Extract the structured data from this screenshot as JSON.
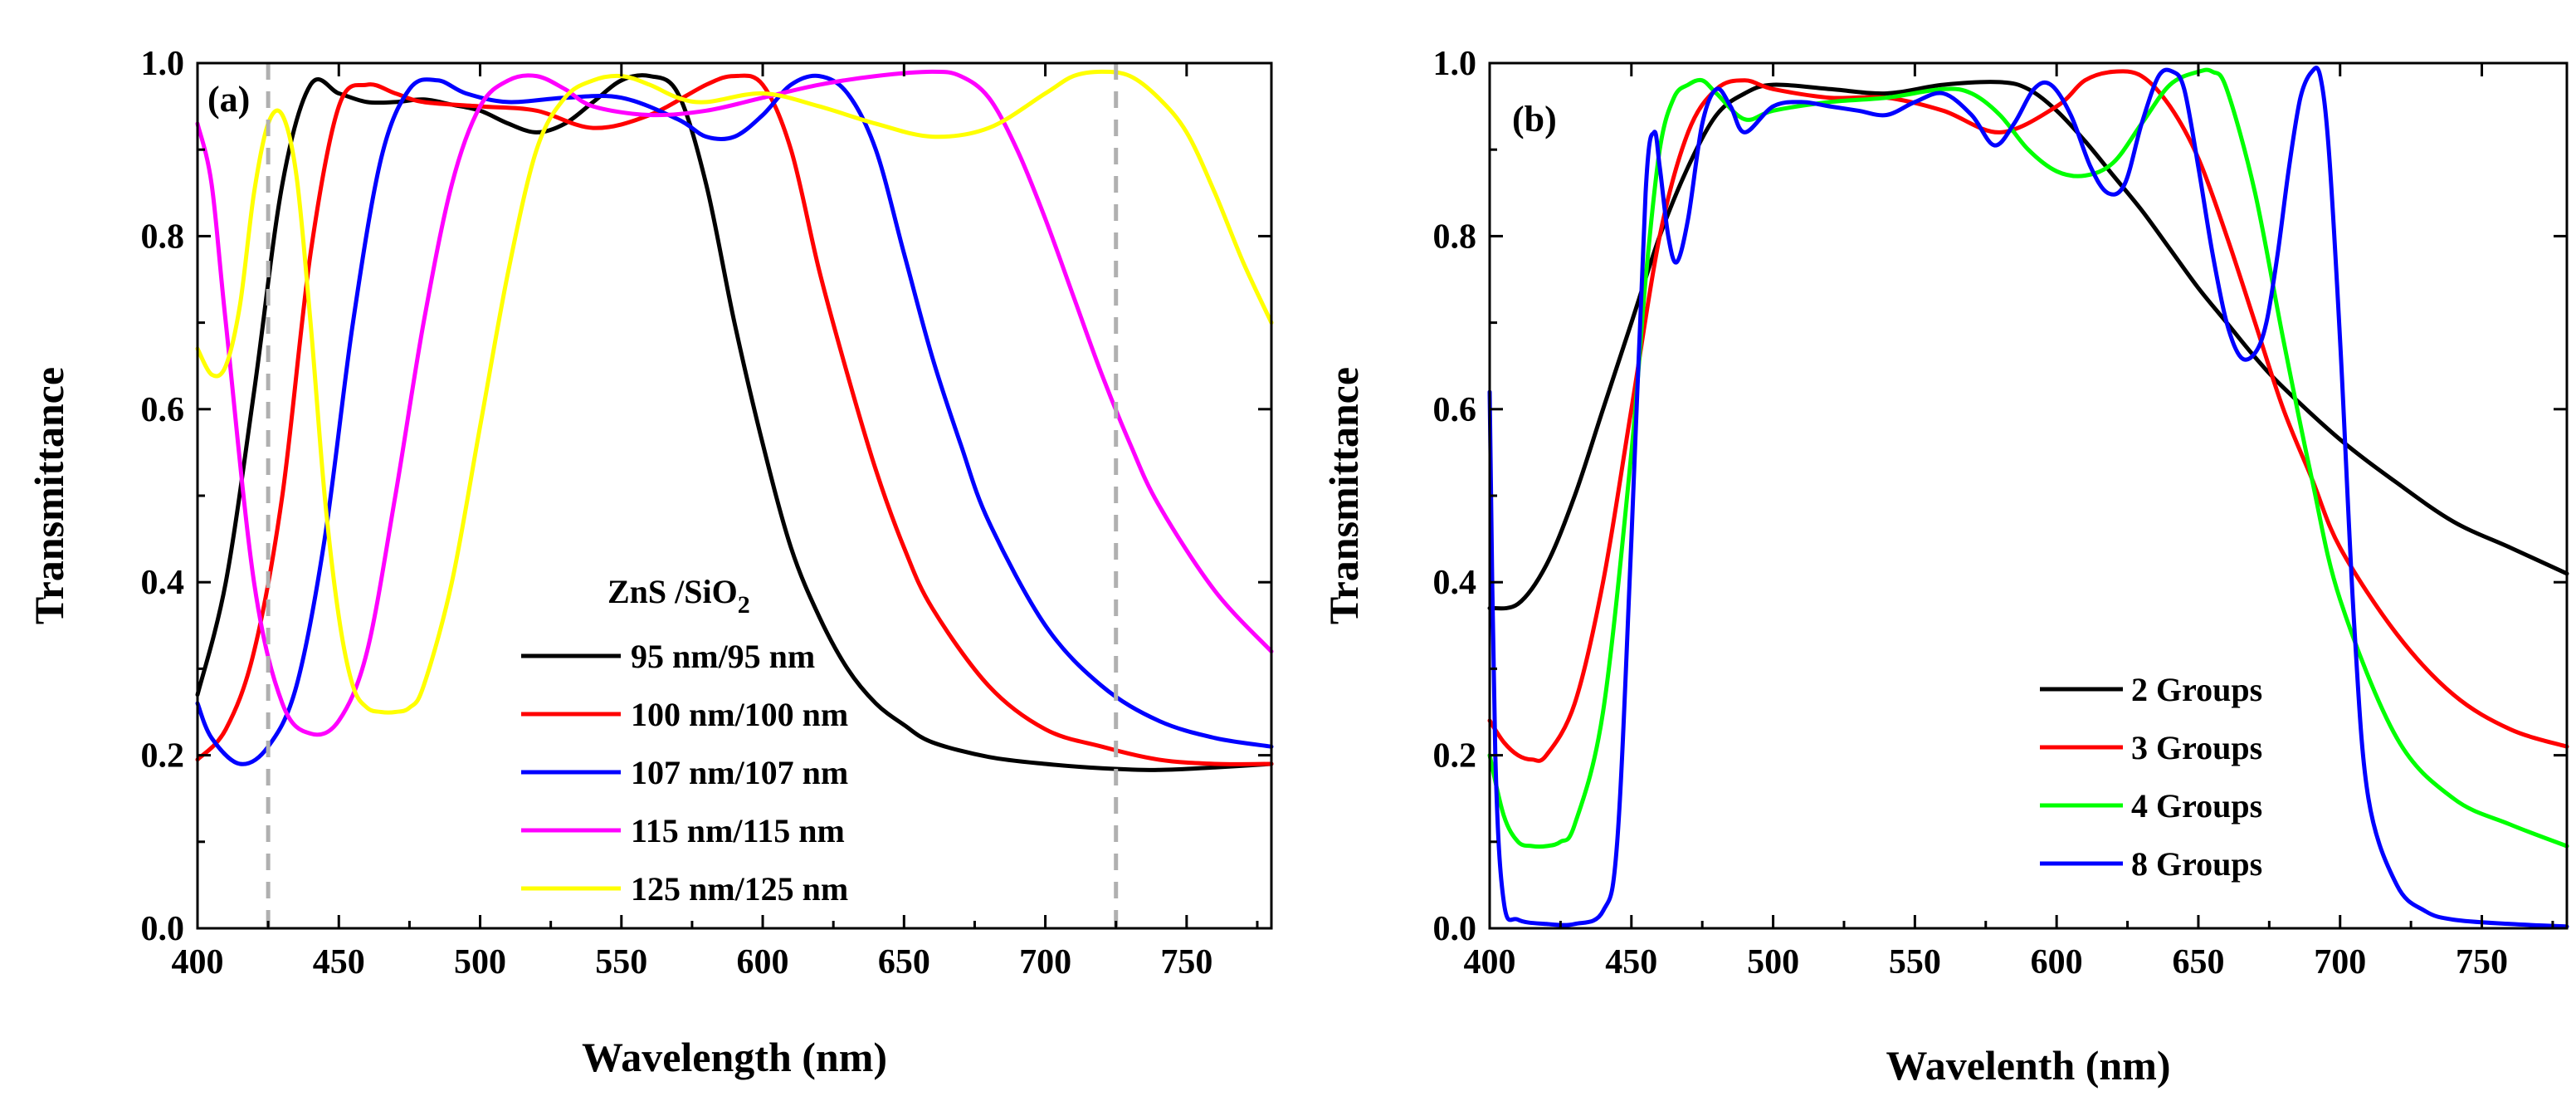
{
  "chart_data": [
    {
      "type": "line",
      "panel_label": "(a)",
      "xlabel": "Wavelength (nm)",
      "ylabel": "Transmittance",
      "xlim": [
        400,
        780
      ],
      "ylim": [
        0,
        1.0
      ],
      "x_ticks": [
        400,
        450,
        500,
        550,
        600,
        650,
        700,
        750
      ],
      "y_ticks": [
        0.0,
        0.2,
        0.4,
        0.6,
        0.8,
        1.0
      ],
      "y_tick_labels": [
        "0.0",
        "0.2",
        "0.4",
        "0.6",
        "0.8",
        "1.0"
      ],
      "reference_lines_x": [
        425,
        725
      ],
      "legend": {
        "title_main": "ZnS /SiO",
        "title_sub": "2",
        "placement": "center-bottom"
      },
      "series": [
        {
          "name": "95 nm/95 nm",
          "color": "#000000",
          "x": [
            400,
            410,
            420,
            430,
            440,
            450,
            460,
            470,
            480,
            490,
            500,
            510,
            520,
            530,
            540,
            550,
            560,
            570,
            580,
            590,
            600,
            610,
            620,
            630,
            640,
            650,
            660,
            680,
            700,
            720,
            740,
            760,
            780
          ],
          "y": [
            0.27,
            0.4,
            0.62,
            0.86,
            0.975,
            0.965,
            0.955,
            0.955,
            0.958,
            0.952,
            0.945,
            0.93,
            0.92,
            0.93,
            0.955,
            0.98,
            0.985,
            0.965,
            0.86,
            0.7,
            0.56,
            0.44,
            0.36,
            0.3,
            0.26,
            0.235,
            0.215,
            0.198,
            0.19,
            0.185,
            0.183,
            0.186,
            0.19
          ]
        },
        {
          "name": "100 nm/100 nm",
          "color": "#ff0000",
          "x": [
            400,
            410,
            420,
            430,
            440,
            450,
            460,
            470,
            480,
            500,
            520,
            540,
            560,
            580,
            590,
            600,
            610,
            620,
            630,
            640,
            650,
            660,
            680,
            700,
            720,
            740,
            760,
            780
          ],
          "y": [
            0.195,
            0.23,
            0.32,
            0.5,
            0.78,
            0.95,
            0.975,
            0.965,
            0.955,
            0.95,
            0.945,
            0.925,
            0.94,
            0.975,
            0.985,
            0.975,
            0.9,
            0.76,
            0.64,
            0.53,
            0.44,
            0.37,
            0.28,
            0.23,
            0.21,
            0.195,
            0.19,
            0.19
          ]
        },
        {
          "name": "107 nm/107 nm",
          "color": "#0000ff",
          "x": [
            400,
            405,
            415,
            425,
            435,
            445,
            455,
            465,
            475,
            485,
            495,
            510,
            530,
            550,
            570,
            580,
            590,
            600,
            610,
            620,
            630,
            640,
            650,
            660,
            670,
            680,
            700,
            720,
            740,
            760,
            780
          ],
          "y": [
            0.26,
            0.22,
            0.19,
            0.21,
            0.28,
            0.45,
            0.7,
            0.89,
            0.97,
            0.98,
            0.965,
            0.955,
            0.96,
            0.96,
            0.935,
            0.915,
            0.915,
            0.94,
            0.975,
            0.985,
            0.965,
            0.9,
            0.78,
            0.66,
            0.56,
            0.47,
            0.35,
            0.28,
            0.24,
            0.22,
            0.21
          ]
        },
        {
          "name": "115 nm/115 nm",
          "color": "#ff00ff",
          "x": [
            400,
            405,
            410,
            420,
            430,
            440,
            450,
            460,
            470,
            480,
            490,
            500,
            510,
            520,
            530,
            540,
            560,
            580,
            600,
            620,
            640,
            660,
            670,
            680,
            690,
            700,
            710,
            720,
            730,
            740,
            760,
            780
          ],
          "y": [
            0.93,
            0.86,
            0.7,
            0.4,
            0.26,
            0.225,
            0.24,
            0.32,
            0.5,
            0.7,
            0.86,
            0.95,
            0.98,
            0.985,
            0.97,
            0.95,
            0.94,
            0.945,
            0.96,
            0.975,
            0.985,
            0.99,
            0.985,
            0.96,
            0.9,
            0.82,
            0.73,
            0.64,
            0.56,
            0.49,
            0.39,
            0.32
          ]
        },
        {
          "name": "125 nm/125 nm",
          "color": "#ffff00",
          "x": [
            400,
            405,
            410,
            415,
            420,
            425,
            430,
            435,
            440,
            445,
            450,
            455,
            460,
            465,
            470,
            475,
            480,
            490,
            500,
            510,
            520,
            530,
            540,
            550,
            560,
            570,
            580,
            600,
            620,
            640,
            660,
            680,
            700,
            710,
            720,
            730,
            740,
            750,
            760,
            770,
            780
          ],
          "y": [
            0.67,
            0.64,
            0.65,
            0.72,
            0.85,
            0.93,
            0.94,
            0.87,
            0.7,
            0.5,
            0.36,
            0.28,
            0.255,
            0.25,
            0.25,
            0.255,
            0.28,
            0.4,
            0.58,
            0.76,
            0.9,
            0.96,
            0.98,
            0.985,
            0.975,
            0.96,
            0.955,
            0.965,
            0.95,
            0.93,
            0.915,
            0.925,
            0.965,
            0.985,
            0.99,
            0.985,
            0.96,
            0.92,
            0.85,
            0.77,
            0.7
          ]
        }
      ]
    },
    {
      "type": "line",
      "panel_label": "(b)",
      "xlabel": "Wavelenth (nm)",
      "ylabel": "Transmittance",
      "xlim": [
        400,
        780
      ],
      "ylim": [
        0,
        1.0
      ],
      "x_ticks": [
        400,
        450,
        500,
        550,
        600,
        650,
        700,
        750
      ],
      "y_ticks": [
        0.0,
        0.2,
        0.4,
        0.6,
        0.8,
        1.0
      ],
      "y_tick_labels": [
        "0.0",
        "0.2",
        "0.4",
        "0.6",
        "0.8",
        "1.0"
      ],
      "legend": {
        "placement": "bottom-right"
      },
      "series": [
        {
          "name": "2 Groups",
          "color": "#000000",
          "x": [
            400,
            410,
            420,
            430,
            440,
            450,
            460,
            470,
            480,
            490,
            500,
            520,
            540,
            560,
            580,
            590,
            600,
            610,
            620,
            630,
            640,
            650,
            660,
            670,
            680,
            700,
            720,
            740,
            760,
            780
          ],
          "y": [
            0.37,
            0.375,
            0.42,
            0.5,
            0.6,
            0.7,
            0.8,
            0.88,
            0.94,
            0.965,
            0.975,
            0.97,
            0.965,
            0.975,
            0.978,
            0.97,
            0.945,
            0.91,
            0.87,
            0.83,
            0.785,
            0.74,
            0.7,
            0.66,
            0.625,
            0.565,
            0.515,
            0.47,
            0.44,
            0.41
          ]
        },
        {
          "name": "3 Groups",
          "color": "#ff0000",
          "x": [
            400,
            405,
            410,
            415,
            420,
            430,
            440,
            450,
            460,
            470,
            480,
            490,
            500,
            520,
            540,
            560,
            580,
            600,
            610,
            620,
            630,
            640,
            650,
            660,
            670,
            680,
            690,
            700,
            720,
            740,
            760,
            780
          ],
          "y": [
            0.24,
            0.215,
            0.2,
            0.195,
            0.2,
            0.26,
            0.4,
            0.6,
            0.8,
            0.92,
            0.97,
            0.98,
            0.97,
            0.96,
            0.96,
            0.945,
            0.92,
            0.95,
            0.98,
            0.99,
            0.985,
            0.95,
            0.89,
            0.8,
            0.7,
            0.6,
            0.52,
            0.44,
            0.34,
            0.27,
            0.23,
            0.21
          ]
        },
        {
          "name": "4 Groups",
          "color": "#00ff00",
          "x": [
            400,
            405,
            410,
            415,
            420,
            425,
            430,
            440,
            450,
            455,
            460,
            465,
            470,
            475,
            480,
            490,
            500,
            520,
            540,
            560,
            570,
            580,
            590,
            600,
            610,
            620,
            630,
            640,
            650,
            655,
            660,
            670,
            680,
            690,
            700,
            720,
            740,
            760,
            780
          ],
          "y": [
            0.2,
            0.13,
            0.1,
            0.095,
            0.095,
            0.1,
            0.12,
            0.25,
            0.55,
            0.75,
            0.9,
            0.96,
            0.975,
            0.98,
            0.965,
            0.935,
            0.945,
            0.955,
            0.96,
            0.97,
            0.965,
            0.94,
            0.9,
            0.875,
            0.87,
            0.885,
            0.93,
            0.975,
            0.99,
            0.99,
            0.97,
            0.85,
            0.68,
            0.52,
            0.38,
            0.22,
            0.15,
            0.12,
            0.095
          ]
        },
        {
          "name": "8 Groups",
          "color": "#0000ff",
          "x": [
            400,
            402,
            405,
            410,
            420,
            430,
            440,
            445,
            450,
            455,
            458,
            460,
            463,
            466,
            470,
            475,
            480,
            485,
            490,
            500,
            510,
            520,
            530,
            540,
            550,
            560,
            570,
            578,
            585,
            592,
            598,
            605,
            612,
            618,
            624,
            630,
            636,
            641,
            645,
            650,
            655,
            660,
            665,
            670,
            674,
            678,
            682,
            686,
            690,
            693,
            696,
            700,
            705,
            710,
            720,
            730,
            740,
            760,
            780
          ],
          "y": [
            0.62,
            0.2,
            0.03,
            0.01,
            0.005,
            0.005,
            0.02,
            0.1,
            0.45,
            0.85,
            0.92,
            0.88,
            0.8,
            0.77,
            0.82,
            0.93,
            0.97,
            0.95,
            0.92,
            0.95,
            0.955,
            0.95,
            0.945,
            0.94,
            0.955,
            0.965,
            0.94,
            0.905,
            0.93,
            0.97,
            0.975,
            0.94,
            0.88,
            0.85,
            0.86,
            0.93,
            0.985,
            0.99,
            0.97,
            0.88,
            0.78,
            0.7,
            0.66,
            0.665,
            0.7,
            0.78,
            0.88,
            0.96,
            0.99,
            0.985,
            0.9,
            0.68,
            0.35,
            0.15,
            0.05,
            0.02,
            0.01,
            0.005,
            0.002
          ]
        }
      ]
    }
  ]
}
